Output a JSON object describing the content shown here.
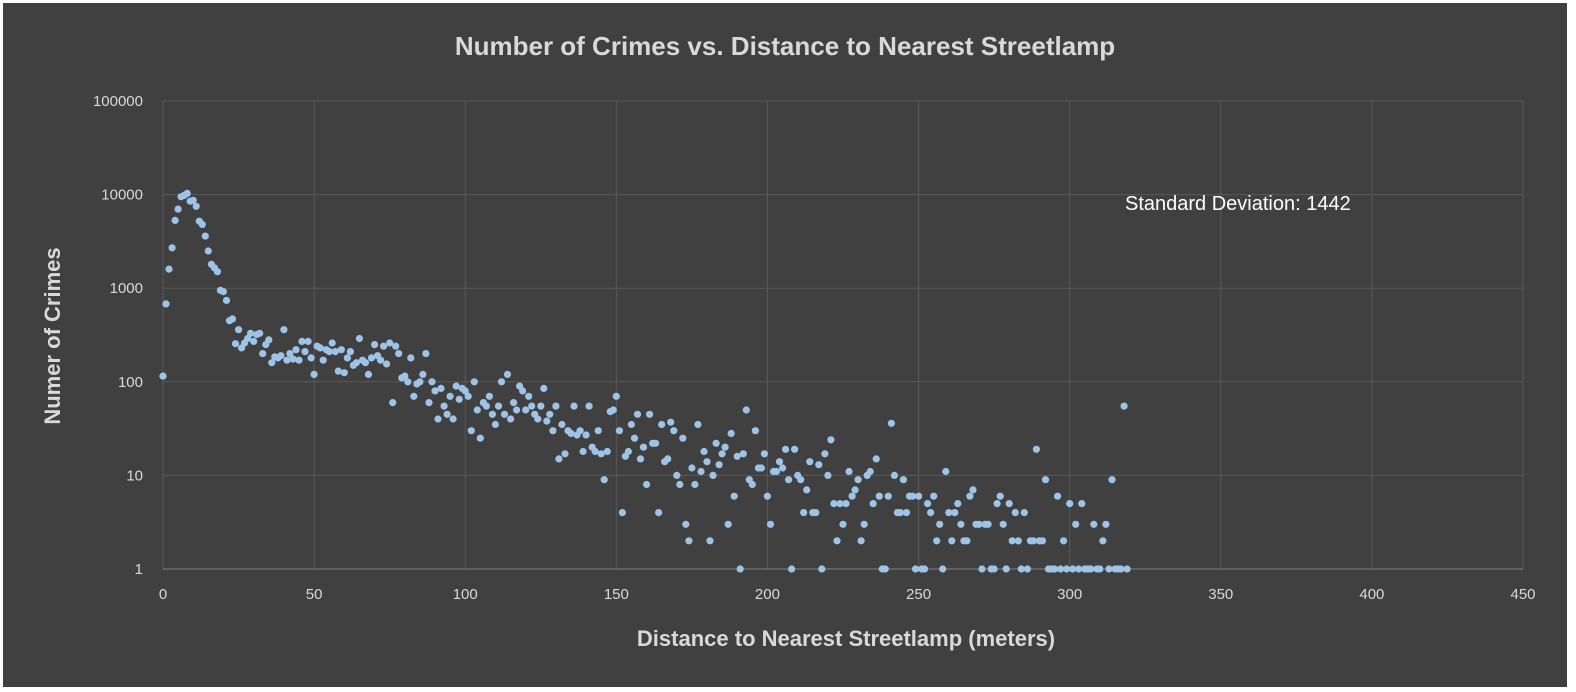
{
  "chart_data": {
    "type": "scatter",
    "title": "Number of Crimes vs. Distance to Nearest Streetlamp",
    "xlabel": "Distance to Nearest Streetlamp (meters)",
    "ylabel": "Numer of Crimes",
    "xlim": [
      0,
      450
    ],
    "ylim": [
      1,
      100000
    ],
    "yscale": "log",
    "grid": true,
    "x_ticks": [
      "0",
      "50",
      "100",
      "150",
      "200",
      "250",
      "300",
      "350",
      "400",
      "450"
    ],
    "y_ticks": [
      "1",
      "10",
      "100",
      "1000",
      "10000",
      "100000"
    ],
    "annotation": "Standard Deviation: 1442",
    "marker_color": "#9dc3e6",
    "background_color": "#404040",
    "points": [
      [
        0,
        115
      ],
      [
        1,
        680
      ],
      [
        2,
        1600
      ],
      [
        3,
        2700
      ],
      [
        4,
        5300
      ],
      [
        5,
        7000
      ],
      [
        6,
        9500
      ],
      [
        7,
        9800
      ],
      [
        8,
        10300
      ],
      [
        9,
        8500
      ],
      [
        10,
        8700
      ],
      [
        11,
        7500
      ],
      [
        12,
        5200
      ],
      [
        13,
        4800
      ],
      [
        14,
        3600
      ],
      [
        15,
        2500
      ],
      [
        16,
        1800
      ],
      [
        17,
        1650
      ],
      [
        18,
        1500
      ],
      [
        19,
        950
      ],
      [
        20,
        920
      ],
      [
        21,
        740
      ],
      [
        22,
        450
      ],
      [
        23,
        470
      ],
      [
        24,
        255
      ],
      [
        25,
        360
      ],
      [
        26,
        230
      ],
      [
        27,
        260
      ],
      [
        28,
        290
      ],
      [
        29,
        330
      ],
      [
        30,
        270
      ],
      [
        31,
        320
      ],
      [
        32,
        330
      ],
      [
        33,
        200
      ],
      [
        34,
        250
      ],
      [
        35,
        280
      ],
      [
        36,
        160
      ],
      [
        37,
        185
      ],
      [
        38,
        180
      ],
      [
        39,
        190
      ],
      [
        40,
        360
      ],
      [
        41,
        170
      ],
      [
        42,
        200
      ],
      [
        43,
        175
      ],
      [
        44,
        220
      ],
      [
        45,
        170
      ],
      [
        46,
        270
      ],
      [
        47,
        210
      ],
      [
        48,
        270
      ],
      [
        49,
        180
      ],
      [
        50,
        120
      ],
      [
        51,
        240
      ],
      [
        52,
        230
      ],
      [
        53,
        170
      ],
      [
        54,
        220
      ],
      [
        55,
        210
      ],
      [
        56,
        260
      ],
      [
        57,
        210
      ],
      [
        58,
        130
      ],
      [
        59,
        220
      ],
      [
        60,
        125
      ],
      [
        61,
        180
      ],
      [
        62,
        210
      ],
      [
        63,
        150
      ],
      [
        64,
        160
      ],
      [
        65,
        290
      ],
      [
        66,
        170
      ],
      [
        67,
        160
      ],
      [
        68,
        120
      ],
      [
        69,
        180
      ],
      [
        70,
        250
      ],
      [
        71,
        190
      ],
      [
        72,
        170
      ],
      [
        73,
        240
      ],
      [
        74,
        155
      ],
      [
        75,
        260
      ],
      [
        76,
        60
      ],
      [
        77,
        240
      ],
      [
        78,
        200
      ],
      [
        79,
        110
      ],
      [
        80,
        115
      ],
      [
        81,
        100
      ],
      [
        82,
        180
      ],
      [
        83,
        70
      ],
      [
        84,
        95
      ],
      [
        85,
        100
      ],
      [
        86,
        120
      ],
      [
        87,
        200
      ],
      [
        88,
        60
      ],
      [
        89,
        100
      ],
      [
        90,
        80
      ],
      [
        91,
        40
      ],
      [
        92,
        85
      ],
      [
        93,
        55
      ],
      [
        94,
        45
      ],
      [
        95,
        70
      ],
      [
        96,
        40
      ],
      [
        97,
        90
      ],
      [
        98,
        65
      ],
      [
        99,
        85
      ],
      [
        100,
        80
      ],
      [
        101,
        70
      ],
      [
        102,
        30
      ],
      [
        103,
        100
      ],
      [
        104,
        50
      ],
      [
        105,
        25
      ],
      [
        106,
        60
      ],
      [
        107,
        55
      ],
      [
        108,
        70
      ],
      [
        109,
        45
      ],
      [
        110,
        35
      ],
      [
        111,
        55
      ],
      [
        112,
        100
      ],
      [
        113,
        45
      ],
      [
        114,
        120
      ],
      [
        115,
        40
      ],
      [
        116,
        60
      ],
      [
        117,
        50
      ],
      [
        118,
        90
      ],
      [
        119,
        80
      ],
      [
        120,
        50
      ],
      [
        121,
        70
      ],
      [
        122,
        55
      ],
      [
        123,
        45
      ],
      [
        124,
        40
      ],
      [
        125,
        55
      ],
      [
        126,
        85
      ],
      [
        127,
        38
      ],
      [
        128,
        45
      ],
      [
        129,
        30
      ],
      [
        130,
        55
      ],
      [
        131,
        15
      ],
      [
        132,
        35
      ],
      [
        133,
        17
      ],
      [
        134,
        30
      ],
      [
        135,
        28
      ],
      [
        136,
        55
      ],
      [
        137,
        27
      ],
      [
        138,
        30
      ],
      [
        139,
        18
      ],
      [
        140,
        27
      ],
      [
        141,
        55
      ],
      [
        142,
        20
      ],
      [
        143,
        18
      ],
      [
        144,
        30
      ],
      [
        145,
        17
      ],
      [
        146,
        9
      ],
      [
        147,
        18
      ],
      [
        148,
        48
      ],
      [
        149,
        50
      ],
      [
        150,
        70
      ],
      [
        151,
        30
      ],
      [
        152,
        4
      ],
      [
        153,
        16
      ],
      [
        154,
        18
      ],
      [
        155,
        35
      ],
      [
        156,
        25
      ],
      [
        157,
        45
      ],
      [
        158,
        15
      ],
      [
        159,
        20
      ],
      [
        160,
        8
      ],
      [
        161,
        45
      ],
      [
        162,
        22
      ],
      [
        163,
        22
      ],
      [
        164,
        4
      ],
      [
        165,
        35
      ],
      [
        166,
        14
      ],
      [
        167,
        15
      ],
      [
        168,
        37
      ],
      [
        169,
        30
      ],
      [
        170,
        10
      ],
      [
        171,
        8
      ],
      [
        172,
        25
      ],
      [
        173,
        3
      ],
      [
        174,
        2
      ],
      [
        175,
        12
      ],
      [
        176,
        8
      ],
      [
        177,
        35
      ],
      [
        178,
        11
      ],
      [
        179,
        18
      ],
      [
        180,
        14
      ],
      [
        181,
        2
      ],
      [
        182,
        10
      ],
      [
        183,
        22
      ],
      [
        184,
        13
      ],
      [
        185,
        17
      ],
      [
        186,
        20
      ],
      [
        187,
        3
      ],
      [
        188,
        28
      ],
      [
        189,
        6
      ],
      [
        190,
        16
      ],
      [
        191,
        1
      ],
      [
        192,
        17
      ],
      [
        193,
        50
      ],
      [
        194,
        9
      ],
      [
        195,
        8
      ],
      [
        196,
        30
      ],
      [
        197,
        12
      ],
      [
        198,
        12
      ],
      [
        199,
        17
      ],
      [
        200,
        6
      ],
      [
        201,
        3
      ],
      [
        202,
        11
      ],
      [
        203,
        11
      ],
      [
        204,
        14
      ],
      [
        205,
        12
      ],
      [
        206,
        19
      ],
      [
        207,
        9
      ],
      [
        208,
        1
      ],
      [
        209,
        19
      ],
      [
        210,
        10
      ],
      [
        211,
        9
      ],
      [
        212,
        4
      ],
      [
        213,
        7
      ],
      [
        214,
        14
      ],
      [
        215,
        4
      ],
      [
        216,
        4
      ],
      [
        217,
        13
      ],
      [
        218,
        1
      ],
      [
        219,
        17
      ],
      [
        220,
        10
      ],
      [
        221,
        24
      ],
      [
        222,
        5
      ],
      [
        223,
        2
      ],
      [
        224,
        5
      ],
      [
        225,
        3
      ],
      [
        226,
        5
      ],
      [
        227,
        11
      ],
      [
        228,
        6
      ],
      [
        229,
        7
      ],
      [
        230,
        9
      ],
      [
        231,
        2
      ],
      [
        232,
        3
      ],
      [
        233,
        10
      ],
      [
        234,
        11
      ],
      [
        235,
        5
      ],
      [
        236,
        15
      ],
      [
        237,
        6
      ],
      [
        238,
        1
      ],
      [
        239,
        1
      ],
      [
        240,
        6
      ],
      [
        241,
        36
      ],
      [
        242,
        10
      ],
      [
        243,
        4
      ],
      [
        244,
        4
      ],
      [
        245,
        9
      ],
      [
        246,
        4
      ],
      [
        247,
        6
      ],
      [
        248,
        6
      ],
      [
        249,
        1
      ],
      [
        250,
        6
      ],
      [
        251,
        1
      ],
      [
        252,
        1
      ],
      [
        253,
        5
      ],
      [
        254,
        4
      ],
      [
        255,
        6
      ],
      [
        256,
        2
      ],
      [
        257,
        3
      ],
      [
        258,
        1
      ],
      [
        259,
        11
      ],
      [
        260,
        4
      ],
      [
        261,
        2
      ],
      [
        262,
        4
      ],
      [
        263,
        5
      ],
      [
        264,
        3
      ],
      [
        265,
        2
      ],
      [
        266,
        2
      ],
      [
        267,
        6
      ],
      [
        268,
        7
      ],
      [
        269,
        3
      ],
      [
        270,
        3
      ],
      [
        271,
        1
      ],
      [
        272,
        3
      ],
      [
        273,
        3
      ],
      [
        274,
        1
      ],
      [
        275,
        1
      ],
      [
        276,
        5
      ],
      [
        277,
        6
      ],
      [
        278,
        3
      ],
      [
        279,
        1
      ],
      [
        280,
        5
      ],
      [
        281,
        2
      ],
      [
        282,
        4
      ],
      [
        283,
        2
      ],
      [
        284,
        1
      ],
      [
        285,
        4
      ],
      [
        286,
        1
      ],
      [
        287,
        2
      ],
      [
        288,
        2
      ],
      [
        289,
        19
      ],
      [
        290,
        2
      ],
      [
        291,
        2
      ],
      [
        292,
        9
      ],
      [
        293,
        1
      ],
      [
        294,
        1
      ],
      [
        295,
        1
      ],
      [
        296,
        6
      ],
      [
        297,
        1
      ],
      [
        298,
        2
      ],
      [
        299,
        1
      ],
      [
        300,
        5
      ],
      [
        301,
        1
      ],
      [
        302,
        3
      ],
      [
        303,
        1
      ],
      [
        304,
        5
      ],
      [
        305,
        1
      ],
      [
        306,
        1
      ],
      [
        307,
        1
      ],
      [
        308,
        3
      ],
      [
        309,
        1
      ],
      [
        310,
        1
      ],
      [
        311,
        2
      ],
      [
        312,
        3
      ],
      [
        313,
        1
      ],
      [
        314,
        9
      ],
      [
        315,
        1
      ],
      [
        316,
        1
      ],
      [
        317,
        1
      ],
      [
        318,
        55
      ],
      [
        319,
        1
      ]
    ]
  }
}
